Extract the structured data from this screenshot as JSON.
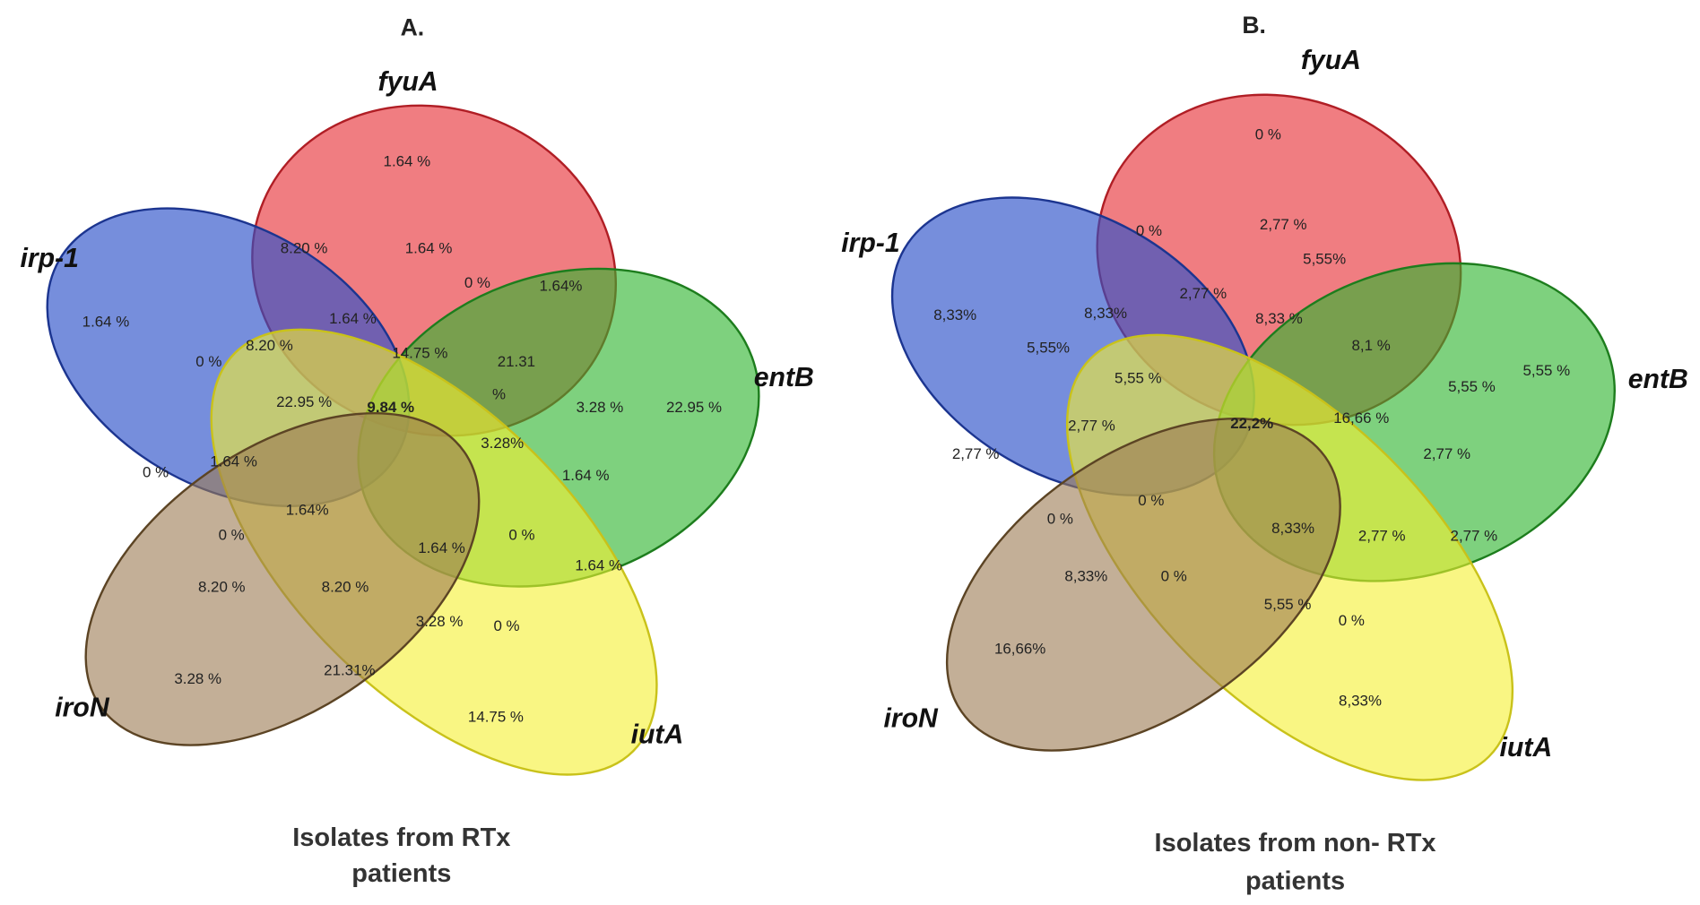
{
  "panels": [
    {
      "title": "A.",
      "sets": [
        "fyuA",
        "irp-1",
        "entB",
        "iutA",
        "iroN"
      ],
      "regions": [
        "1.64 %",
        "8.20 %",
        "1.64 %",
        "0 %",
        "1.64%",
        "1.64 %",
        "1.64 %",
        "0 %",
        "8.20 %",
        "14.75 %",
        "21.31",
        "%",
        "22.95 %",
        "9.84 %",
        "3.28 %",
        "22.95 %",
        "3.28%",
        "0 %",
        "1.64 %",
        "1.64 %",
        "1.64%",
        "0 %",
        "0 %",
        "1.64 %",
        "1.64 %",
        "8.20 %",
        "8.20 %",
        "3.28 %",
        "0 %",
        "3.28 %",
        "21.31%",
        "14.75 %"
      ],
      "caption": [
        "Isolates from RTx",
        "patients"
      ]
    },
    {
      "title": "B.",
      "sets": [
        "fyuA",
        "irp-1",
        "entB",
        "iutA",
        "iroN"
      ],
      "regions": [
        "0 %",
        "0 %",
        "2,77 %",
        "5,55%",
        "8,33%",
        "8,33%",
        "2,77 %",
        "8,33 %",
        "5,55%",
        "8,1 %",
        "5,55 %",
        "5,55 %",
        "5,55 %",
        "2,77 %",
        "22,2%",
        "16,66 %",
        "2,77 %",
        "2,77 %",
        "0 %",
        "0 %",
        "8,33%",
        "2,77 %",
        "2,77 %",
        "8,33%",
        "0 %",
        "5,55 %",
        "0 %",
        "16,66%",
        "8,33%"
      ],
      "caption": [
        "Isolates from non- RTx",
        "patients"
      ]
    }
  ]
}
